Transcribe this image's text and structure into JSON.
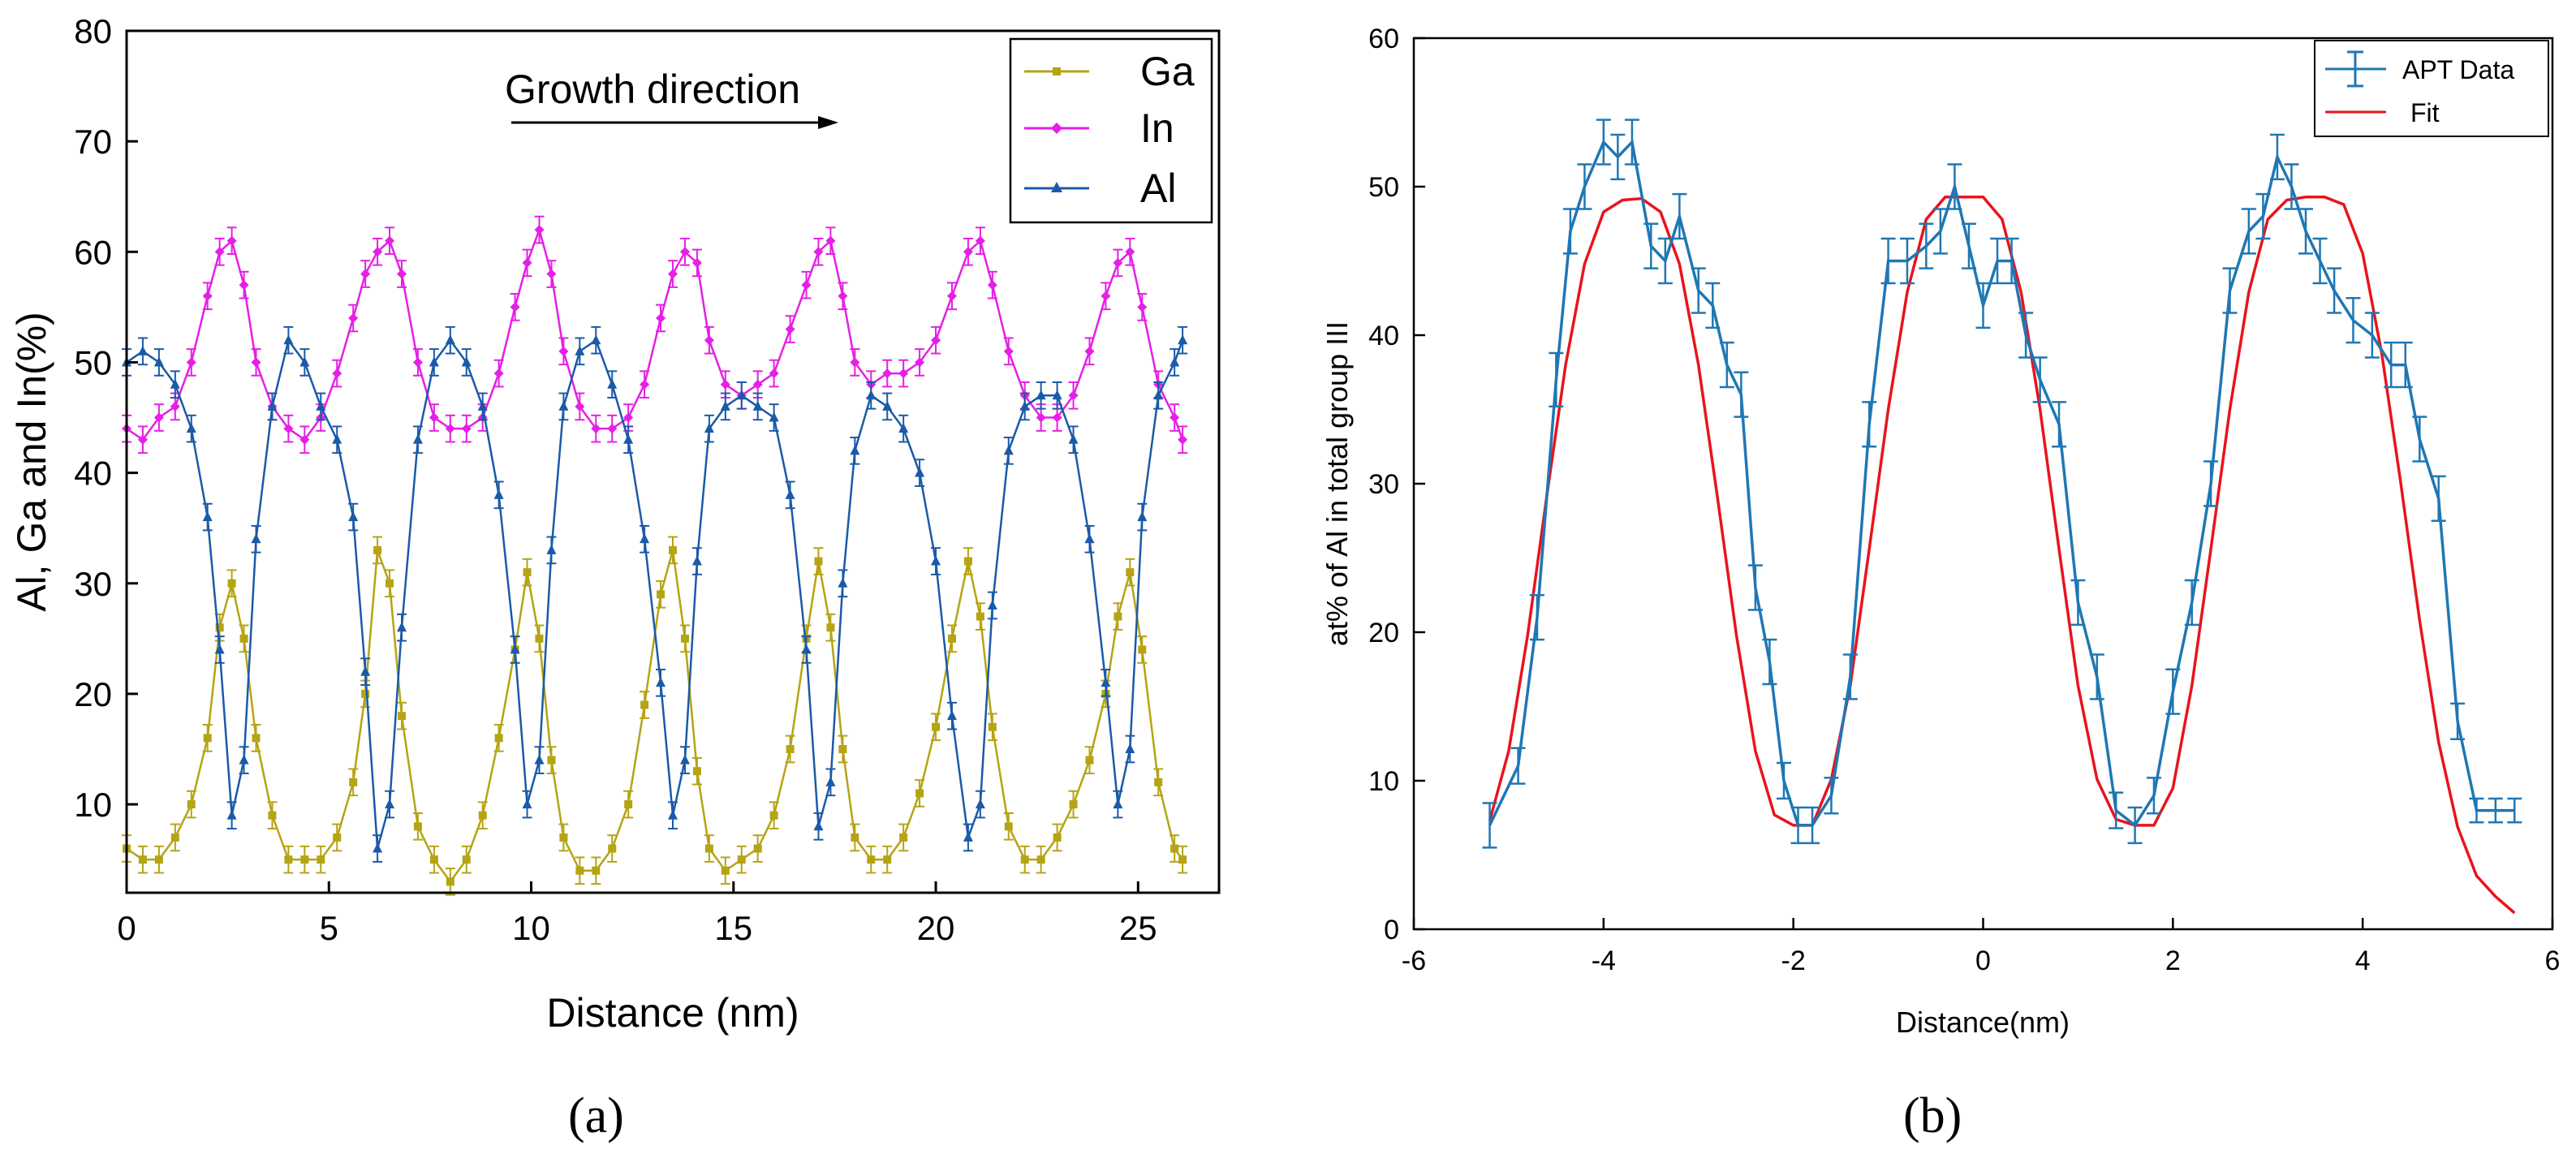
{
  "chart_data": [
    {
      "panel_label": "(a)",
      "type": "line",
      "title": "",
      "xlabel": "Distance (nm)",
      "ylabel": "Al, Ga and In(%)",
      "xlim": [
        0,
        27
      ],
      "ylim": [
        2,
        80
      ],
      "xticks": [
        0,
        5,
        10,
        15,
        20,
        25
      ],
      "yticks": [
        10,
        20,
        30,
        40,
        50,
        60,
        70,
        80
      ],
      "annotation": "Growth direction",
      "legend_position": "top-right",
      "series": [
        {
          "name": "Ga",
          "color": "#b5a414",
          "marker": "square",
          "x": [
            0,
            0.4,
            0.8,
            1.2,
            1.6,
            2.0,
            2.3,
            2.6,
            2.9,
            3.2,
            3.6,
            4.0,
            4.4,
            4.8,
            5.2,
            5.6,
            5.9,
            6.2,
            6.5,
            6.8,
            7.2,
            7.6,
            8.0,
            8.4,
            8.8,
            9.2,
            9.6,
            9.9,
            10.2,
            10.5,
            10.8,
            11.2,
            11.6,
            12.0,
            12.4,
            12.8,
            13.2,
            13.5,
            13.8,
            14.1,
            14.4,
            14.8,
            15.2,
            15.6,
            16.0,
            16.4,
            16.8,
            17.1,
            17.4,
            17.7,
            18.0,
            18.4,
            18.8,
            19.2,
            19.6,
            20.0,
            20.4,
            20.8,
            21.1,
            21.4,
            21.8,
            22.2,
            22.6,
            23.0,
            23.4,
            23.8,
            24.2,
            24.5,
            24.8,
            25.1,
            25.5,
            25.9,
            26.1
          ],
          "y": [
            6,
            5,
            5,
            7,
            10,
            16,
            26,
            30,
            25,
            16,
            9,
            5,
            5,
            5,
            7,
            12,
            20,
            33,
            30,
            18,
            8,
            5,
            3,
            5,
            9,
            16,
            24,
            31,
            25,
            14,
            7,
            4,
            4,
            6,
            10,
            19,
            29,
            33,
            25,
            13,
            6,
            4,
            5,
            6,
            9,
            15,
            25,
            32,
            26,
            15,
            7,
            5,
            5,
            7,
            11,
            17,
            25,
            32,
            27,
            17,
            8,
            5,
            5,
            7,
            10,
            14,
            20,
            27,
            31,
            24,
            12,
            6,
            5
          ]
        },
        {
          "name": "In",
          "color": "#e61fe6",
          "marker": "diamond",
          "x": [
            0,
            0.4,
            0.8,
            1.2,
            1.6,
            2.0,
            2.3,
            2.6,
            2.9,
            3.2,
            3.6,
            4.0,
            4.4,
            4.8,
            5.2,
            5.6,
            5.9,
            6.2,
            6.5,
            6.8,
            7.2,
            7.6,
            8.0,
            8.4,
            8.8,
            9.2,
            9.6,
            9.9,
            10.2,
            10.5,
            10.8,
            11.2,
            11.6,
            12.0,
            12.4,
            12.8,
            13.2,
            13.5,
            13.8,
            14.1,
            14.4,
            14.8,
            15.2,
            15.6,
            16.0,
            16.4,
            16.8,
            17.1,
            17.4,
            17.7,
            18.0,
            18.4,
            18.8,
            19.2,
            19.6,
            20.0,
            20.4,
            20.8,
            21.1,
            21.4,
            21.8,
            22.2,
            22.6,
            23.0,
            23.4,
            23.8,
            24.2,
            24.5,
            24.8,
            25.1,
            25.5,
            25.9,
            26.1
          ],
          "y": [
            44,
            43,
            45,
            46,
            50,
            56,
            60,
            61,
            57,
            50,
            46,
            44,
            43,
            45,
            49,
            54,
            58,
            60,
            61,
            58,
            50,
            45,
            44,
            44,
            45,
            49,
            55,
            59,
            62,
            58,
            51,
            46,
            44,
            44,
            45,
            48,
            54,
            58,
            60,
            59,
            52,
            48,
            47,
            48,
            49,
            53,
            57,
            60,
            61,
            56,
            50,
            48,
            49,
            49,
            50,
            52,
            56,
            60,
            61,
            57,
            51,
            47,
            45,
            45,
            47,
            51,
            56,
            59,
            60,
            55,
            48,
            45,
            43
          ]
        },
        {
          "name": "Al",
          "color": "#1a5aa8",
          "marker": "triangle",
          "x": [
            0,
            0.4,
            0.8,
            1.2,
            1.6,
            2.0,
            2.3,
            2.6,
            2.9,
            3.2,
            3.6,
            4.0,
            4.4,
            4.8,
            5.2,
            5.6,
            5.9,
            6.2,
            6.5,
            6.8,
            7.2,
            7.6,
            8.0,
            8.4,
            8.8,
            9.2,
            9.6,
            9.9,
            10.2,
            10.5,
            10.8,
            11.2,
            11.6,
            12.0,
            12.4,
            12.8,
            13.2,
            13.5,
            13.8,
            14.1,
            14.4,
            14.8,
            15.2,
            15.6,
            16.0,
            16.4,
            16.8,
            17.1,
            17.4,
            17.7,
            18.0,
            18.4,
            18.8,
            19.2,
            19.6,
            20.0,
            20.4,
            20.8,
            21.1,
            21.4,
            21.8,
            22.2,
            22.6,
            23.0,
            23.4,
            23.8,
            24.2,
            24.5,
            24.8,
            25.1,
            25.5,
            25.9,
            26.1
          ],
          "y": [
            50,
            51,
            50,
            48,
            44,
            36,
            24,
            9,
            14,
            34,
            46,
            52,
            50,
            46,
            43,
            36,
            22,
            6,
            10,
            26,
            43,
            50,
            52,
            50,
            46,
            38,
            24,
            10,
            14,
            33,
            46,
            51,
            52,
            48,
            43,
            34,
            21,
            9,
            14,
            32,
            44,
            46,
            47,
            46,
            45,
            38,
            24,
            8,
            12,
            30,
            42,
            47,
            46,
            44,
            40,
            32,
            18,
            7,
            10,
            28,
            42,
            46,
            47,
            47,
            43,
            34,
            21,
            10,
            15,
            36,
            47,
            50,
            52
          ]
        }
      ]
    },
    {
      "panel_label": "(b)",
      "type": "line",
      "title": "",
      "xlabel": "Distance(nm)",
      "ylabel": "at% of Al in total group III",
      "xlim": [
        -6,
        6
      ],
      "ylim": [
        0,
        60
      ],
      "xticks": [
        -6,
        -4,
        -2,
        0,
        2,
        4,
        6
      ],
      "yticks": [
        0,
        10,
        20,
        30,
        40,
        50,
        60
      ],
      "legend_position": "top-right",
      "series": [
        {
          "name": "APT Data",
          "color": "#1f77b4",
          "marker": "error-bar",
          "x": [
            -5.2,
            -4.9,
            -4.7,
            -4.5,
            -4.35,
            -4.2,
            -4.0,
            -3.85,
            -3.7,
            -3.5,
            -3.35,
            -3.2,
            -3.0,
            -2.85,
            -2.7,
            -2.55,
            -2.4,
            -2.25,
            -2.1,
            -1.95,
            -1.8,
            -1.6,
            -1.4,
            -1.2,
            -1.0,
            -0.8,
            -0.6,
            -0.45,
            -0.3,
            -0.15,
            0,
            0.15,
            0.3,
            0.45,
            0.6,
            0.8,
            1.0,
            1.2,
            1.4,
            1.6,
            1.8,
            2.0,
            2.2,
            2.4,
            2.6,
            2.8,
            2.95,
            3.1,
            3.25,
            3.4,
            3.55,
            3.7,
            3.9,
            4.1,
            4.3,
            4.45,
            4.6,
            4.8,
            5.0,
            5.2,
            5.4,
            5.6
          ],
          "y": [
            7,
            11,
            21,
            37,
            47,
            50,
            53,
            52,
            53,
            46,
            45,
            48,
            43,
            42,
            38,
            36,
            23,
            18,
            10,
            7,
            7,
            9,
            17,
            34,
            45,
            45,
            46,
            47,
            50,
            46,
            42,
            45,
            45,
            40,
            37,
            34,
            22,
            17,
            8,
            7,
            9,
            16,
            22,
            30,
            43,
            47,
            48,
            52,
            50,
            47,
            45,
            43,
            41,
            40,
            38,
            38,
            33,
            29,
            14,
            8,
            8,
            8
          ],
          "err": [
            1.5,
            1.2,
            1.5,
            1.8,
            1.5,
            1.5,
            1.5,
            1.5,
            1.5,
            1.5,
            1.5,
            1.5,
            1.5,
            1.5,
            1.5,
            1.5,
            1.5,
            1.5,
            1.2,
            1.2,
            1.2,
            1.2,
            1.5,
            1.5,
            1.5,
            1.5,
            1.5,
            1.5,
            1.5,
            1.5,
            1.5,
            1.5,
            1.5,
            1.5,
            1.5,
            1.5,
            1.5,
            1.5,
            1.2,
            1.2,
            1.2,
            1.5,
            1.5,
            1.5,
            1.5,
            1.5,
            1.5,
            1.5,
            1.5,
            1.5,
            1.5,
            1.5,
            1.5,
            1.5,
            1.5,
            1.5,
            1.5,
            1.5,
            1.2,
            0.8,
            0.8,
            0.8
          ]
        },
        {
          "name": "Fit",
          "color": "#e8141e",
          "marker": "none",
          "model": "A*sin^2(pi*(x+5.4)/3.6)+7",
          "x": [
            -5.2,
            -5.0,
            -4.8,
            -4.6,
            -4.4,
            -4.2,
            -4.0,
            -3.8,
            -3.6,
            -3.4,
            -3.2,
            -3.0,
            -2.8,
            -2.6,
            -2.4,
            -2.2,
            -2.0,
            -1.8,
            -1.6,
            -1.4,
            -1.2,
            -1.0,
            -0.8,
            -0.6,
            -0.4,
            -0.2,
            0,
            0.2,
            0.4,
            0.6,
            0.8,
            1.0,
            1.2,
            1.4,
            1.6,
            1.8,
            2.0,
            2.2,
            2.4,
            2.6,
            2.8,
            3.0,
            3.2,
            3.4,
            3.6,
            3.8,
            4.0,
            4.2,
            4.4,
            4.6,
            4.8,
            5.0,
            5.2,
            5.4,
            5.6
          ],
          "y": [
            7.3,
            12.0,
            19.8,
            29.1,
            38.0,
            44.8,
            48.3,
            49.1,
            49.2,
            48.3,
            44.8,
            38.0,
            29.1,
            19.8,
            12.0,
            7.7,
            7.0,
            7.0,
            10.1,
            16.4,
            25.6,
            35.0,
            42.9,
            47.8,
            49.3,
            49.3,
            49.3,
            47.8,
            42.9,
            35.0,
            25.6,
            16.4,
            10.1,
            7.4,
            7.0,
            7.0,
            9.5,
            16.4,
            25.6,
            35.0,
            42.9,
            47.8,
            49.1,
            49.3,
            49.3,
            48.8,
            45.5,
            38.8,
            30.1,
            20.8,
            12.6,
            6.9,
            3.6,
            2.2,
            1.1
          ]
        }
      ]
    }
  ]
}
